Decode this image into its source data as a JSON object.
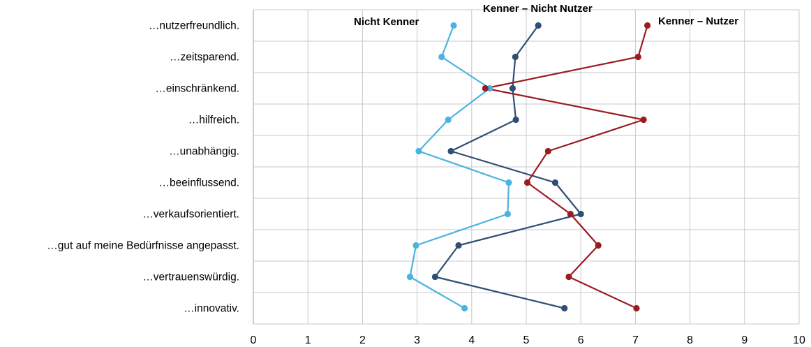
{
  "chart_data": {
    "type": "line",
    "orientation": "horizontal-values",
    "categories": [
      "…nutzerfreundlich.",
      "…zeitsparend.",
      "…einschränkend.",
      "…hilfreich.",
      "…unabhängig.",
      "…beeinflussend.",
      "…verkaufsorientiert.",
      "…gut auf meine Bedürfnisse angepasst.",
      "…vertrauenswürdig.",
      "…innovativ."
    ],
    "xlim": [
      0,
      10
    ],
    "xticks": [
      "0",
      "1",
      "2",
      "3",
      "4",
      "5",
      "6",
      "7",
      "8",
      "9",
      "10"
    ],
    "grid": true,
    "series": [
      {
        "name": "Nicht Kenner",
        "color": "#4bb3e2",
        "values": [
          3.67,
          3.45,
          4.33,
          3.57,
          3.03,
          4.68,
          4.66,
          2.98,
          2.87,
          3.87
        ]
      },
      {
        "name": "Kenner – Nicht Nutzer",
        "color": "#2f4e75",
        "values": [
          5.22,
          4.8,
          4.75,
          4.81,
          3.62,
          5.53,
          6.0,
          3.76,
          3.33,
          5.7
        ]
      },
      {
        "name": "Kenner – Nutzer",
        "color": "#9a1b20",
        "values": [
          7.22,
          7.05,
          4.25,
          7.15,
          5.4,
          5.02,
          5.81,
          6.32,
          5.78,
          7.02
        ]
      }
    ]
  }
}
